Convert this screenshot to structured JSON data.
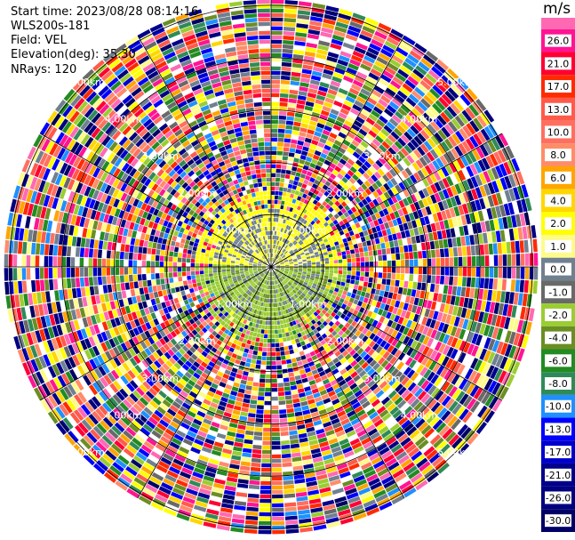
{
  "header": {
    "start_time": "Start time: 2023/08/28 08:14:16",
    "instrument": "WLS200s-181",
    "field": "Field: VEL",
    "elevation": "Elevation(deg): 35.30",
    "nrays": "NRays: 120"
  },
  "colorbar": {
    "unit": "m/s",
    "levels": [
      {
        "label": "26.0",
        "color": "#ff1493"
      },
      {
        "label": "21.0",
        "color": "#ff0033"
      },
      {
        "label": "17.0",
        "color": "#ff2a00"
      },
      {
        "label": "13.0",
        "color": "#ff5a4a"
      },
      {
        "label": "10.0",
        "color": "#ff6f5f"
      },
      {
        "label": "8.0",
        "color": "#ff8c69"
      },
      {
        "label": "6.0",
        "color": "#ffa500"
      },
      {
        "label": "4.0",
        "color": "#ffd700"
      },
      {
        "label": "2.0",
        "color": "#ffff00"
      },
      {
        "label": "1.0",
        "color": "#fffb8a"
      },
      {
        "label": "0.0",
        "color": "#708090"
      },
      {
        "label": "-1.0",
        "color": "#696969"
      },
      {
        "label": "-2.0",
        "color": "#9acd32"
      },
      {
        "label": "-4.0",
        "color": "#6b8e23"
      },
      {
        "label": "-6.0",
        "color": "#228b22"
      },
      {
        "label": "-8.0",
        "color": "#2e8b57"
      },
      {
        "label": "-10.0",
        "color": "#1e90ff"
      },
      {
        "label": "-13.0",
        "color": "#0000ff"
      },
      {
        "label": "-17.0",
        "color": "#0000cd"
      },
      {
        "label": "-21.0",
        "color": "#00008b"
      },
      {
        "label": "-26.0",
        "color": "#000080"
      },
      {
        "label": "-30.0",
        "color": "#000066"
      }
    ],
    "top_color": "#ff69b4"
  },
  "chart_data": {
    "type": "heatmap",
    "projection": "polar (PPI)",
    "nrays": 120,
    "range_rings_km": [
      "1.00km",
      "2.00km",
      "3.00km",
      "4.00km",
      "5.00km"
    ],
    "ring_values_km": [
      1,
      2,
      3,
      4,
      5
    ],
    "max_range_km": 5.1,
    "spokes_deg": [
      0,
      30,
      60,
      90,
      120,
      150,
      180,
      210,
      240,
      270,
      300,
      330
    ],
    "near_field": "mostly 0 to 2 m/s (grey/yellow) north, -2 to -4 m/s (olive) south within ~1 km",
    "far_field": "noisy, values span -30 to 26 m/s"
  }
}
